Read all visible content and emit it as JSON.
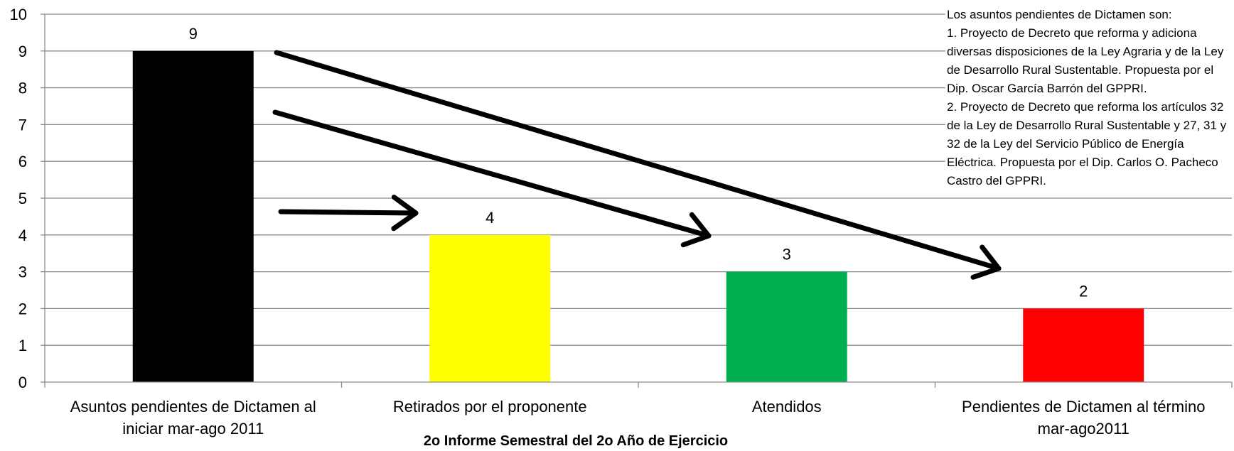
{
  "chart_data": {
    "type": "bar",
    "categories": [
      [
        "Asuntos pendientes de Dictamen al",
        "iniciar mar-ago 2011"
      ],
      [
        "Retirados por el proponente"
      ],
      [
        "Atendidos"
      ],
      [
        "Pendientes de Dictamen al término",
        "mar-ago2011"
      ]
    ],
    "values": [
      9,
      4,
      3,
      2
    ],
    "colors": [
      "#000000",
      "#ffff00",
      "#00b050",
      "#ff0000"
    ],
    "data_labels": [
      "9",
      "4",
      "3",
      "2"
    ],
    "ylim": [
      0,
      10
    ],
    "yticks": [
      "0",
      "1",
      "2",
      "3",
      "4",
      "5",
      "6",
      "7",
      "8",
      "9",
      "10"
    ],
    "grid": true,
    "xlabel": "2o Informe Semestral del 2o Año de Ejercicio",
    "ylabel": "",
    "title": "",
    "annotations": [
      {
        "type": "arrow",
        "from_category": 0,
        "to_category": 1
      },
      {
        "type": "arrow",
        "from_category": 0,
        "to_category": 2
      },
      {
        "type": "arrow",
        "from_category": 0,
        "to_category": 3
      }
    ]
  },
  "note": {
    "lines": [
      "Los asuntos pendientes de Dictamen son:",
      "1. Proyecto de Decreto que reforma y adiciona diversas disposiciones de la Ley Agraria y de la Ley de Desarrollo Rural Sustentable. Propuesta por el Dip. Oscar García Barrón del GPPRI.",
      "2. Proyecto de Decreto que reforma los artículos 32 de la Ley de Desarrollo Rural Sustentable y 27, 31 y 32 de la Ley del Servicio Público de Energía Eléctrica. Propuesta por el Dip. Carlos O. Pacheco Castro del GPPRI."
    ]
  }
}
